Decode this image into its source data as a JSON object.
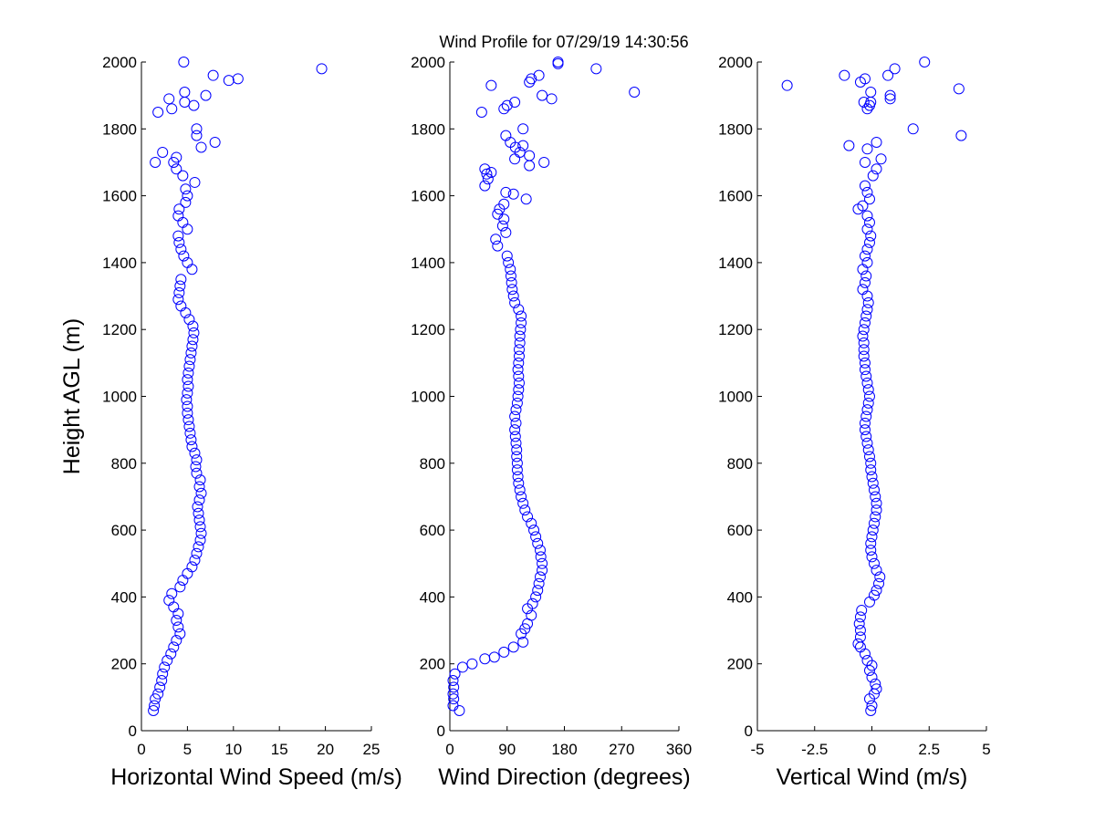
{
  "title": "Wind Profile for  07/29/19 14:30:56",
  "colors": {
    "marker": "#0000ff",
    "axes": "#000000",
    "background": "#ffffff"
  },
  "chart_data": [
    {
      "type": "scatter",
      "xlabel": "Horizontal Wind Speed (m/s)",
      "ylabel": "Height AGL (m)",
      "xlim": [
        0,
        25
      ],
      "ylim": [
        0,
        2000
      ],
      "xticks": [
        0,
        5,
        10,
        15,
        20,
        25
      ],
      "yticks": [
        0,
        200,
        400,
        600,
        800,
        1000,
        1200,
        1400,
        1600,
        1800,
        2000
      ],
      "xtick_labels": [
        "0",
        "5",
        "10",
        "15",
        "20",
        "25"
      ],
      "ytick_labels": [
        "0",
        "200",
        "400",
        "600",
        "800",
        "1000",
        "1200",
        "1400",
        "1600",
        "1800",
        "2000"
      ],
      "marker": "circle-open",
      "points": [
        [
          1.3,
          60
        ],
        [
          1.4,
          75
        ],
        [
          1.5,
          95
        ],
        [
          1.8,
          110
        ],
        [
          2.0,
          130
        ],
        [
          2.2,
          150
        ],
        [
          2.3,
          170
        ],
        [
          2.5,
          190
        ],
        [
          2.8,
          210
        ],
        [
          3.2,
          230
        ],
        [
          3.5,
          250
        ],
        [
          3.8,
          270
        ],
        [
          4.2,
          290
        ],
        [
          4.0,
          310
        ],
        [
          3.8,
          330
        ],
        [
          4.0,
          350
        ],
        [
          3.5,
          370
        ],
        [
          3.0,
          390
        ],
        [
          3.3,
          410
        ],
        [
          4.2,
          430
        ],
        [
          4.5,
          450
        ],
        [
          5.0,
          470
        ],
        [
          5.5,
          490
        ],
        [
          5.8,
          510
        ],
        [
          6.0,
          530
        ],
        [
          6.2,
          550
        ],
        [
          6.4,
          570
        ],
        [
          6.5,
          590
        ],
        [
          6.4,
          610
        ],
        [
          6.3,
          630
        ],
        [
          6.2,
          650
        ],
        [
          6.1,
          670
        ],
        [
          6.3,
          690
        ],
        [
          6.5,
          710
        ],
        [
          6.3,
          730
        ],
        [
          6.4,
          750
        ],
        [
          6.0,
          770
        ],
        [
          5.9,
          790
        ],
        [
          6.0,
          810
        ],
        [
          5.8,
          830
        ],
        [
          5.5,
          850
        ],
        [
          5.4,
          870
        ],
        [
          5.3,
          890
        ],
        [
          5.2,
          910
        ],
        [
          5.1,
          930
        ],
        [
          5.0,
          950
        ],
        [
          5.0,
          970
        ],
        [
          4.9,
          990
        ],
        [
          5.0,
          1010
        ],
        [
          5.1,
          1030
        ],
        [
          5.0,
          1050
        ],
        [
          5.1,
          1070
        ],
        [
          5.2,
          1090
        ],
        [
          5.3,
          1110
        ],
        [
          5.4,
          1130
        ],
        [
          5.5,
          1150
        ],
        [
          5.6,
          1170
        ],
        [
          5.7,
          1190
        ],
        [
          5.6,
          1210
        ],
        [
          5.2,
          1230
        ],
        [
          4.8,
          1250
        ],
        [
          4.3,
          1270
        ],
        [
          4.0,
          1290
        ],
        [
          4.1,
          1310
        ],
        [
          4.2,
          1330
        ],
        [
          4.3,
          1350
        ],
        [
          5.5,
          1380
        ],
        [
          5.0,
          1400
        ],
        [
          4.6,
          1420
        ],
        [
          4.3,
          1440
        ],
        [
          4.1,
          1460
        ],
        [
          4.0,
          1480
        ],
        [
          5.0,
          1500
        ],
        [
          4.5,
          1520
        ],
        [
          4.0,
          1540
        ],
        [
          4.1,
          1560
        ],
        [
          4.8,
          1580
        ],
        [
          5.0,
          1600
        ],
        [
          4.8,
          1620
        ],
        [
          5.8,
          1640
        ],
        [
          4.5,
          1660
        ],
        [
          3.8,
          1680
        ],
        [
          3.5,
          1700
        ],
        [
          1.5,
          1700
        ],
        [
          3.8,
          1715
        ],
        [
          2.3,
          1730
        ],
        [
          6.5,
          1745
        ],
        [
          8.0,
          1760
        ],
        [
          6.0,
          1780
        ],
        [
          6.0,
          1800
        ],
        [
          1.8,
          1850
        ],
        [
          3.3,
          1860
        ],
        [
          5.7,
          1870
        ],
        [
          3.0,
          1890
        ],
        [
          4.7,
          1880
        ],
        [
          7.0,
          1900
        ],
        [
          4.7,
          1910
        ],
        [
          9.5,
          1945
        ],
        [
          10.5,
          1950
        ],
        [
          7.8,
          1960
        ],
        [
          19.6,
          1980
        ],
        [
          4.6,
          2000
        ]
      ]
    },
    {
      "type": "scatter",
      "xlabel": "Wind Direction (degrees)",
      "xlim": [
        0,
        360
      ],
      "ylim": [
        0,
        2000
      ],
      "xticks": [
        0,
        90,
        180,
        270,
        360
      ],
      "yticks": [
        0,
        200,
        400,
        600,
        800,
        1000,
        1200,
        1400,
        1600,
        1800,
        2000
      ],
      "xtick_labels": [
        "0",
        "90",
        "180",
        "270",
        "360"
      ],
      "ytick_labels": [
        "0",
        "200",
        "400",
        "600",
        "800",
        "1000",
        "1200",
        "1400",
        "1600",
        "1800",
        "2000"
      ],
      "marker": "circle-open",
      "points": [
        [
          15,
          60
        ],
        [
          5,
          75
        ],
        [
          6,
          95
        ],
        [
          5,
          110
        ],
        [
          6,
          130
        ],
        [
          5,
          150
        ],
        [
          8,
          170
        ],
        [
          20,
          190
        ],
        [
          35,
          200
        ],
        [
          55,
          215
        ],
        [
          70,
          220
        ],
        [
          85,
          235
        ],
        [
          100,
          250
        ],
        [
          115,
          265
        ],
        [
          112,
          290
        ],
        [
          118,
          305
        ],
        [
          122,
          320
        ],
        [
          128,
          345
        ],
        [
          122,
          365
        ],
        [
          130,
          380
        ],
        [
          135,
          400
        ],
        [
          138,
          420
        ],
        [
          140,
          440
        ],
        [
          142,
          460
        ],
        [
          145,
          480
        ],
        [
          145,
          500
        ],
        [
          143,
          520
        ],
        [
          142,
          540
        ],
        [
          138,
          560
        ],
        [
          135,
          580
        ],
        [
          132,
          600
        ],
        [
          128,
          620
        ],
        [
          122,
          640
        ],
        [
          118,
          660
        ],
        [
          115,
          680
        ],
        [
          112,
          700
        ],
        [
          110,
          720
        ],
        [
          108,
          740
        ],
        [
          107,
          760
        ],
        [
          106,
          780
        ],
        [
          106,
          800
        ],
        [
          105,
          820
        ],
        [
          105,
          840
        ],
        [
          104,
          860
        ],
        [
          103,
          880
        ],
        [
          102,
          900
        ],
        [
          104,
          920
        ],
        [
          102,
          940
        ],
        [
          104,
          960
        ],
        [
          106,
          980
        ],
        [
          107,
          1000
        ],
        [
          108,
          1020
        ],
        [
          109,
          1040
        ],
        [
          108,
          1060
        ],
        [
          107,
          1080
        ],
        [
          108,
          1100
        ],
        [
          109,
          1120
        ],
        [
          109,
          1140
        ],
        [
          110,
          1160
        ],
        [
          110,
          1180
        ],
        [
          111,
          1200
        ],
        [
          112,
          1220
        ],
        [
          112,
          1240
        ],
        [
          108,
          1260
        ],
        [
          102,
          1280
        ],
        [
          100,
          1300
        ],
        [
          98,
          1320
        ],
        [
          97,
          1340
        ],
        [
          96,
          1360
        ],
        [
          95,
          1380
        ],
        [
          92,
          1400
        ],
        [
          90,
          1420
        ],
        [
          75,
          1450
        ],
        [
          72,
          1470
        ],
        [
          88,
          1490
        ],
        [
          83,
          1510
        ],
        [
          85,
          1530
        ],
        [
          75,
          1545
        ],
        [
          78,
          1560
        ],
        [
          85,
          1575
        ],
        [
          88,
          1610
        ],
        [
          100,
          1605
        ],
        [
          120,
          1590
        ],
        [
          55,
          1630
        ],
        [
          60,
          1650
        ],
        [
          58,
          1665
        ],
        [
          65,
          1670
        ],
        [
          55,
          1680
        ],
        [
          148,
          1700
        ],
        [
          102,
          1710
        ],
        [
          110,
          1730
        ],
        [
          125,
          1720
        ],
        [
          125,
          1690
        ],
        [
          103,
          1745
        ],
        [
          115,
          1750
        ],
        [
          95,
          1760
        ],
        [
          88,
          1780
        ],
        [
          115,
          1800
        ],
        [
          50,
          1850
        ],
        [
          85,
          1860
        ],
        [
          90,
          1870
        ],
        [
          102,
          1880
        ],
        [
          160,
          1890
        ],
        [
          145,
          1900
        ],
        [
          290,
          1910
        ],
        [
          65,
          1930
        ],
        [
          125,
          1940
        ],
        [
          128,
          1950
        ],
        [
          140,
          1960
        ],
        [
          230,
          1980
        ],
        [
          170,
          1995
        ],
        [
          170,
          2000
        ]
      ]
    },
    {
      "type": "scatter",
      "xlabel": "Vertical Wind (m/s)",
      "xlim": [
        -5,
        5
      ],
      "ylim": [
        0,
        2000
      ],
      "xticks": [
        -5,
        -2.5,
        0,
        2.5,
        5
      ],
      "yticks": [
        0,
        200,
        400,
        600,
        800,
        1000,
        1200,
        1400,
        1600,
        1800,
        2000
      ],
      "xtick_labels": [
        "-5",
        "-2.5",
        "0",
        "2.5",
        "5"
      ],
      "ytick_labels": [
        "0",
        "200",
        "400",
        "600",
        "800",
        "1000",
        "1200",
        "1400",
        "1600",
        "1800",
        "2000"
      ],
      "marker": "circle-open",
      "points": [
        [
          -0.05,
          60
        ],
        [
          0.0,
          75
        ],
        [
          -0.1,
          95
        ],
        [
          0.1,
          110
        ],
        [
          0.2,
          125
        ],
        [
          0.15,
          140
        ],
        [
          0.0,
          160
        ],
        [
          -0.1,
          180
        ],
        [
          0.0,
          195
        ],
        [
          -0.2,
          210
        ],
        [
          -0.3,
          230
        ],
        [
          -0.5,
          250
        ],
        [
          -0.6,
          260
        ],
        [
          -0.5,
          280
        ],
        [
          -0.5,
          300
        ],
        [
          -0.55,
          320
        ],
        [
          -0.5,
          340
        ],
        [
          -0.45,
          360
        ],
        [
          -0.1,
          385
        ],
        [
          0.1,
          405
        ],
        [
          0.2,
          420
        ],
        [
          0.3,
          440
        ],
        [
          0.35,
          460
        ],
        [
          0.2,
          480
        ],
        [
          0.1,
          500
        ],
        [
          0.0,
          520
        ],
        [
          -0.05,
          540
        ],
        [
          -0.05,
          560
        ],
        [
          0.0,
          580
        ],
        [
          0.05,
          600
        ],
        [
          0.1,
          620
        ],
        [
          0.15,
          640
        ],
        [
          0.2,
          660
        ],
        [
          0.2,
          680
        ],
        [
          0.15,
          700
        ],
        [
          0.1,
          720
        ],
        [
          0.05,
          740
        ],
        [
          0.0,
          760
        ],
        [
          -0.05,
          780
        ],
        [
          -0.05,
          800
        ],
        [
          -0.1,
          820
        ],
        [
          -0.15,
          840
        ],
        [
          -0.2,
          860
        ],
        [
          -0.25,
          880
        ],
        [
          -0.3,
          900
        ],
        [
          -0.3,
          920
        ],
        [
          -0.25,
          940
        ],
        [
          -0.2,
          960
        ],
        [
          -0.15,
          980
        ],
        [
          -0.1,
          1000
        ],
        [
          -0.15,
          1020
        ],
        [
          -0.2,
          1040
        ],
        [
          -0.25,
          1060
        ],
        [
          -0.3,
          1080
        ],
        [
          -0.3,
          1100
        ],
        [
          -0.35,
          1120
        ],
        [
          -0.35,
          1140
        ],
        [
          -0.35,
          1160
        ],
        [
          -0.4,
          1180
        ],
        [
          -0.35,
          1200
        ],
        [
          -0.3,
          1220
        ],
        [
          -0.25,
          1240
        ],
        [
          -0.2,
          1260
        ],
        [
          -0.15,
          1280
        ],
        [
          -0.2,
          1300
        ],
        [
          -0.4,
          1320
        ],
        [
          -0.3,
          1340
        ],
        [
          -0.25,
          1360
        ],
        [
          -0.4,
          1380
        ],
        [
          -0.2,
          1400
        ],
        [
          -0.3,
          1420
        ],
        [
          -0.2,
          1440
        ],
        [
          -0.1,
          1460
        ],
        [
          -0.05,
          1480
        ],
        [
          -0.2,
          1500
        ],
        [
          -0.1,
          1520
        ],
        [
          -0.2,
          1540
        ],
        [
          -0.6,
          1560
        ],
        [
          -0.4,
          1570
        ],
        [
          -0.1,
          1590
        ],
        [
          -0.2,
          1610
        ],
        [
          -0.3,
          1630
        ],
        [
          0.05,
          1660
        ],
        [
          0.2,
          1680
        ],
        [
          -0.3,
          1700
        ],
        [
          0.4,
          1710
        ],
        [
          -0.2,
          1740
        ],
        [
          -1.0,
          1750
        ],
        [
          0.2,
          1760
        ],
        [
          1.8,
          1800
        ],
        [
          3.9,
          1780
        ],
        [
          -0.2,
          1860
        ],
        [
          -0.1,
          1870
        ],
        [
          -0.35,
          1880
        ],
        [
          -0.05,
          1880
        ],
        [
          0.8,
          1890
        ],
        [
          0.8,
          1900
        ],
        [
          -0.05,
          1910
        ],
        [
          3.8,
          1920
        ],
        [
          -3.7,
          1930
        ],
        [
          -0.5,
          1940
        ],
        [
          -0.3,
          1950
        ],
        [
          -1.2,
          1960
        ],
        [
          0.7,
          1960
        ],
        [
          1.0,
          1980
        ],
        [
          2.3,
          2000
        ]
      ]
    }
  ]
}
